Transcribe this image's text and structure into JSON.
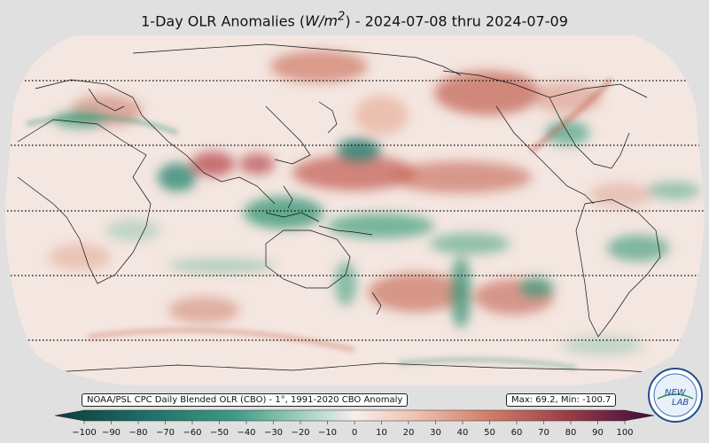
{
  "title": {
    "prefix": "1-Day OLR Anomalies (",
    "unit": "W/m",
    "unit_exp": "2",
    "suffix": ") - 2024-07-08 thru 2024-07-09"
  },
  "source_note": "NOAA/PSL CPC Daily Blended OLR (CBO) - 1°, 1991-2020 CBO Anomaly",
  "stats_note": "Max: 69.2,  Min: -100.7",
  "logo": {
    "text_top": "NEW",
    "text_bottom": "LAB"
  },
  "colorbar": {
    "ticks": [
      "−100",
      "−90",
      "−80",
      "−70",
      "−60",
      "−50",
      "−40",
      "−30",
      "−20",
      "−10",
      "0",
      "10",
      "20",
      "30",
      "40",
      "50",
      "60",
      "70",
      "80",
      "90",
      "100"
    ],
    "negative_end_color": "#0d3b3b",
    "mid_color": "#f6efec",
    "positive_end_color": "#3d0a3b"
  },
  "colors": {
    "ocean_base": "#f4e6e0",
    "warm_anomaly": "#c8705c",
    "cool_anomaly": "#3f9a7a",
    "background": "#e0e0e0"
  }
}
